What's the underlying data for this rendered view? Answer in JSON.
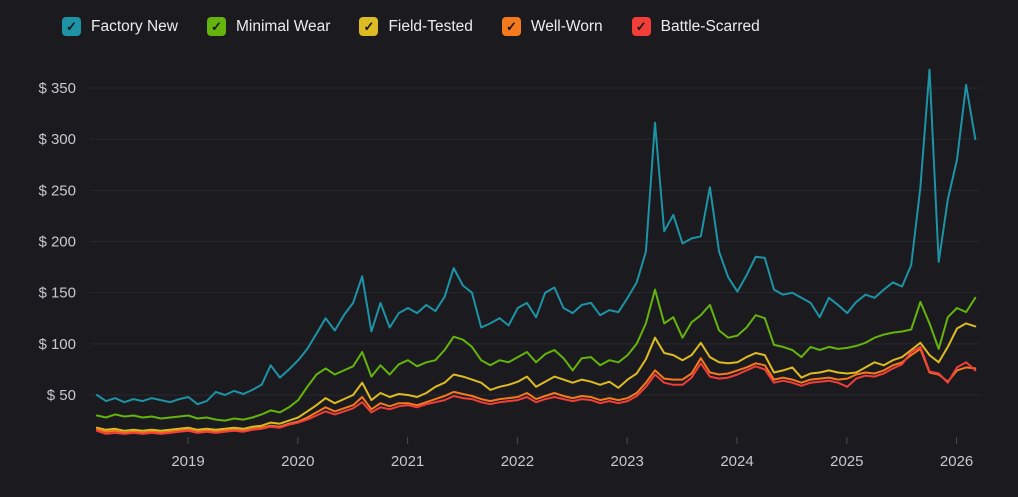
{
  "legend": {
    "items": [
      {
        "label": "Factory New",
        "color": "#1d93a5",
        "checked": true
      },
      {
        "label": "Minimal Wear",
        "color": "#64b40d",
        "checked": true
      },
      {
        "label": "Field-Tested",
        "color": "#ddbb22",
        "checked": true
      },
      {
        "label": "Well-Worn",
        "color": "#f5791d",
        "checked": true
      },
      {
        "label": "Battle-Scarred",
        "color": "#f23e38",
        "checked": true
      }
    ],
    "checkmark_glyph": "✓"
  },
  "chart_data": {
    "type": "line",
    "title": "",
    "xlabel": "",
    "ylabel": "",
    "grid": "horizontal-only",
    "legend_position": "top-left",
    "x_axis": {
      "ticks": [
        {
          "value": 2019,
          "label": "2019"
        },
        {
          "value": 2020,
          "label": "2020"
        },
        {
          "value": 2021,
          "label": "2021"
        },
        {
          "value": 2022,
          "label": "2022"
        },
        {
          "value": 2023,
          "label": "2023"
        },
        {
          "value": 2024,
          "label": "2024"
        },
        {
          "value": 2025,
          "label": "2025"
        },
        {
          "value": 2026,
          "label": "2026"
        }
      ],
      "range": [
        2018.17,
        2026.2
      ]
    },
    "y_axis": {
      "ticks": [
        {
          "value": 50,
          "label": "$ 50"
        },
        {
          "value": 100,
          "label": "$ 100"
        },
        {
          "value": 150,
          "label": "$ 150"
        },
        {
          "value": 200,
          "label": "$ 200"
        },
        {
          "value": 250,
          "label": "$ 250"
        },
        {
          "value": 300,
          "label": "$ 300"
        },
        {
          "value": 350,
          "label": "$ 350"
        }
      ],
      "range": [
        0,
        370
      ],
      "unit": "USD"
    },
    "x_start": 2018.17,
    "x_step": 0.083333,
    "series": [
      {
        "name": "Factory New",
        "color": "#1d93a5",
        "values": [
          50,
          44,
          47,
          43,
          46,
          44,
          47,
          45,
          43,
          46,
          48,
          41,
          44,
          53,
          50,
          54,
          51,
          55,
          60,
          79,
          67,
          75,
          84,
          95,
          110,
          125,
          113,
          128,
          140,
          166,
          112,
          140,
          116,
          130,
          135,
          130,
          138,
          132,
          146,
          174,
          157,
          150,
          116,
          120,
          125,
          118,
          135,
          140,
          126,
          150,
          155,
          135,
          130,
          138,
          140,
          128,
          133,
          131,
          145,
          160,
          190,
          316,
          210,
          226,
          198,
          203,
          205,
          253,
          190,
          165,
          151,
          167,
          185,
          184,
          153,
          148,
          150,
          145,
          140,
          126,
          145,
          138,
          130,
          141,
          148,
          145,
          153,
          160,
          156,
          177,
          253,
          368,
          180,
          241,
          280,
          353,
          300
        ]
      },
      {
        "name": "Minimal Wear",
        "color": "#64b40d",
        "values": [
          30,
          28,
          31,
          29,
          30,
          28,
          29,
          27,
          28,
          29,
          30,
          27,
          28,
          26,
          25,
          27,
          26,
          28,
          31,
          35,
          33,
          38,
          45,
          58,
          70,
          76,
          70,
          74,
          78,
          92,
          68,
          79,
          70,
          80,
          84,
          78,
          82,
          84,
          94,
          107,
          104,
          97,
          84,
          79,
          84,
          82,
          87,
          92,
          82,
          90,
          94,
          86,
          74,
          86,
          87,
          79,
          84,
          82,
          89,
          100,
          120,
          153,
          120,
          126,
          106,
          121,
          128,
          138,
          113,
          106,
          108,
          116,
          128,
          125,
          99,
          97,
          94,
          87,
          97,
          94,
          97,
          95,
          96,
          98,
          101,
          106,
          109,
          111,
          112,
          114,
          141,
          120,
          95,
          126,
          135,
          131,
          145
        ]
      },
      {
        "name": "Field-Tested",
        "color": "#ddbb22",
        "values": [
          18,
          16,
          17,
          15,
          16,
          15,
          16,
          15,
          16,
          17,
          18,
          16,
          17,
          16,
          17,
          18,
          17,
          19,
          20,
          23,
          22,
          25,
          28,
          34,
          40,
          47,
          42,
          46,
          50,
          62,
          45,
          52,
          48,
          51,
          50,
          48,
          52,
          58,
          62,
          70,
          68,
          65,
          62,
          55,
          58,
          60,
          63,
          68,
          58,
          63,
          68,
          65,
          62,
          65,
          63,
          60,
          63,
          57,
          65,
          71,
          85,
          106,
          91,
          89,
          84,
          89,
          101,
          87,
          82,
          81,
          82,
          87,
          91,
          89,
          72,
          74,
          77,
          67,
          71,
          72,
          74,
          72,
          71,
          72,
          77,
          82,
          79,
          84,
          87,
          94,
          101,
          89,
          82,
          97,
          115,
          120,
          117
        ]
      },
      {
        "name": "Well-Worn",
        "color": "#f5791d",
        "values": [
          17,
          14,
          15,
          13,
          14,
          13,
          14,
          13,
          14,
          15,
          16,
          14,
          15,
          14,
          15,
          16,
          15,
          17,
          18,
          20,
          19,
          22,
          24,
          28,
          33,
          38,
          34,
          37,
          40,
          48,
          36,
          42,
          39,
          42,
          42,
          40,
          43,
          46,
          49,
          53,
          51,
          49,
          46,
          44,
          46,
          47,
          48,
          52,
          46,
          49,
          52,
          49,
          47,
          49,
          48,
          45,
          47,
          45,
          47,
          52,
          62,
          74,
          66,
          65,
          65,
          71,
          86,
          72,
          70,
          71,
          74,
          77,
          81,
          79,
          65,
          67,
          65,
          62,
          65,
          66,
          67,
          65,
          66,
          70,
          72,
          71,
          74,
          79,
          82,
          89,
          95,
          72,
          70,
          63,
          74,
          77,
          76
        ]
      },
      {
        "name": "Battle-Scarred",
        "color": "#f23e38",
        "values": [
          15,
          12,
          13,
          12,
          13,
          12,
          13,
          12,
          13,
          14,
          15,
          13,
          14,
          13,
          14,
          15,
          14,
          16,
          17,
          19,
          18,
          21,
          23,
          26,
          30,
          34,
          31,
          34,
          37,
          43,
          33,
          38,
          36,
          39,
          40,
          38,
          41,
          43,
          45,
          49,
          47,
          46,
          43,
          41,
          43,
          44,
          45,
          48,
          43,
          46,
          48,
          46,
          44,
          46,
          45,
          42,
          44,
          42,
          44,
          49,
          58,
          70,
          62,
          60,
          60,
          67,
          81,
          68,
          66,
          67,
          70,
          74,
          78,
          75,
          62,
          64,
          62,
          59,
          62,
          63,
          64,
          62,
          58,
          66,
          69,
          68,
          71,
          76,
          80,
          92,
          97,
          73,
          71,
          62,
          77,
          82,
          74
        ]
      }
    ]
  }
}
